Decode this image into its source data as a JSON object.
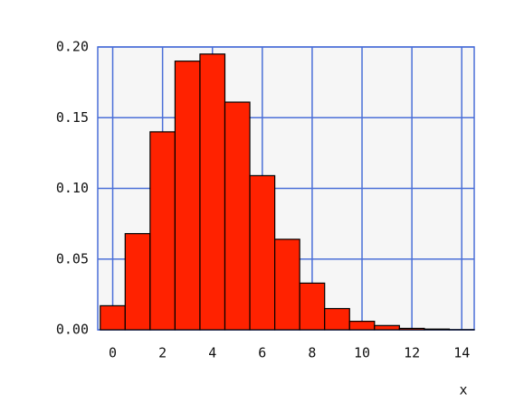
{
  "chart_data": {
    "type": "histogram",
    "bins": [
      -0.5,
      0.5,
      1.5,
      2.5,
      3.5,
      4.5,
      5.5,
      6.5,
      7.5,
      8.5,
      9.5,
      10.5,
      11.5,
      12.5,
      13.5,
      14.5
    ],
    "values": [
      0.017,
      0.068,
      0.14,
      0.19,
      0.195,
      0.161,
      0.109,
      0.064,
      0.033,
      0.015,
      0.006,
      0.003,
      0.001,
      0.0005,
      0.0001
    ],
    "color": "#ff2200",
    "x_label": "x",
    "xlim": [
      -0.6,
      14.5
    ],
    "xticks": [
      0,
      2,
      4,
      6,
      8,
      10,
      12,
      14
    ],
    "ylim": [
      0,
      0.2
    ],
    "yticks": [
      {
        "value": 0,
        "label": "0.00"
      },
      {
        "value": 0.05,
        "label": "0.05"
      },
      {
        "value": 0.1,
        "label": "0.10"
      },
      {
        "value": 0.15,
        "label": "0.15"
      },
      {
        "value": 0.2,
        "label": "0.20"
      }
    ],
    "grid": true
  }
}
